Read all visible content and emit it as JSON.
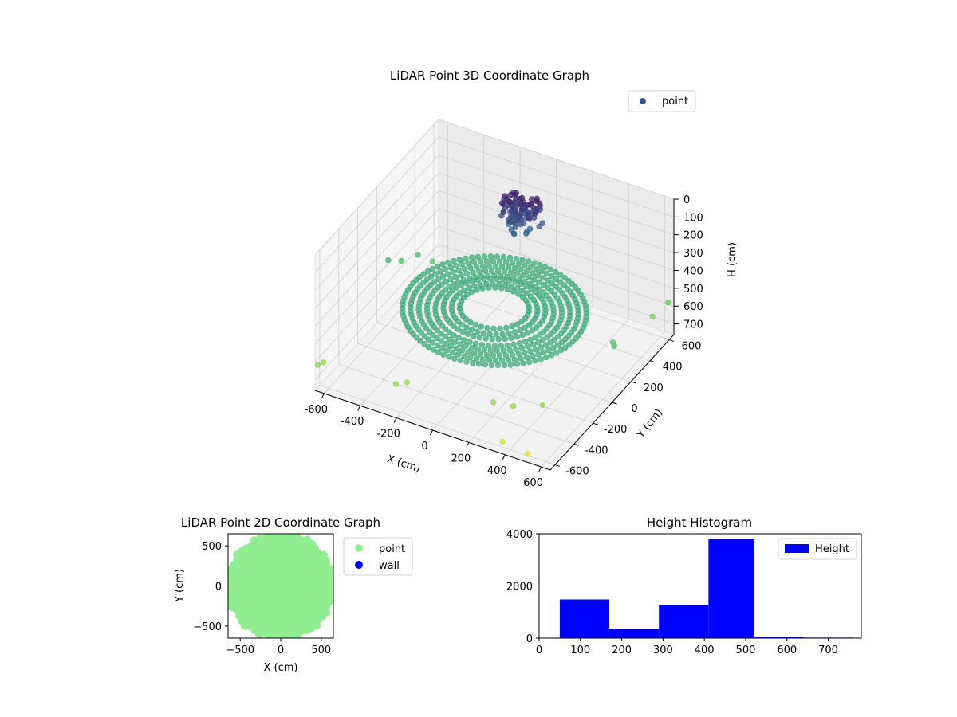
{
  "figure": {
    "background": "#ffffff"
  },
  "chart_data": [
    {
      "type": "scatter",
      "projection": "3d",
      "title": "LiDAR Point 3D Coordinate Graph",
      "xlabel": "X (cm)",
      "ylabel": "Y (cm)",
      "zlabel": "H (cm)",
      "x_ticks": [
        "-600",
        "-400",
        "-200",
        "0",
        "200",
        "400",
        "600"
      ],
      "y_ticks": [
        "-600",
        "-400",
        "-200",
        "0",
        "200",
        "400",
        "600"
      ],
      "z_ticks": [
        "0",
        "100",
        "200",
        "300",
        "400",
        "500",
        "600",
        "700"
      ],
      "xlim": [
        -650,
        650
      ],
      "ylim": [
        -650,
        650
      ],
      "zlim": [
        0,
        760
      ],
      "z_inverted": true,
      "colormap": "viridis",
      "grid": true,
      "legend": {
        "position": "top-right",
        "entries": [
          {
            "label": "point",
            "color": "#3b528b"
          }
        ]
      },
      "series": [
        {
          "name": "point",
          "description_shape": "concentric rings of points at floor level around the sensor, a dense dark cluster near the rear center, scattered outliers at the edges",
          "rings": [
            {
              "radius": 450,
              "h": 470
            },
            {
              "radius": 410,
              "h": 470
            },
            {
              "radius": 370,
              "h": 470
            },
            {
              "radius": 330,
              "h": 470
            },
            {
              "radius": 290,
              "h": 470
            },
            {
              "radius": 250,
              "h": 460
            },
            {
              "radius": 210,
              "h": 460
            },
            {
              "radius": 170,
              "h": 455
            }
          ],
          "cluster": {
            "x": -50,
            "y": 380,
            "h_range": [
              60,
              250
            ]
          },
          "outliers": [
            {
              "x": -640,
              "y": -640,
              "h": 620
            },
            {
              "x": -640,
              "y": -580,
              "h": 640
            },
            {
              "x": -250,
              "y": -560,
              "h": 640
            },
            {
              "x": -210,
              "y": -520,
              "h": 640
            },
            {
              "x": 230,
              "y": -450,
              "h": 640
            },
            {
              "x": 330,
              "y": -430,
              "h": 640
            },
            {
              "x": 450,
              "y": -350,
              "h": 640
            },
            {
              "x": 380,
              "y": -640,
              "h": 700
            },
            {
              "x": 520,
              "y": -640,
              "h": 720
            },
            {
              "x": 640,
              "y": 610,
              "h": 560
            },
            {
              "x": 600,
              "y": 520,
              "h": 600
            },
            {
              "x": -650,
              "y": 120,
              "h": 480
            },
            {
              "x": -620,
              "y": 200,
              "h": 520
            },
            {
              "x": -560,
              "y": 260,
              "h": 500
            },
            {
              "x": -500,
              "y": 300,
              "h": 540
            },
            {
              "x": 620,
              "y": 80,
              "h": 500
            },
            {
              "x": 560,
              "y": 180,
              "h": 560
            }
          ]
        }
      ]
    },
    {
      "type": "scatter",
      "title": "LiDAR Point 2D Coordinate Graph",
      "xlabel": "X (cm)",
      "ylabel": "Y (cm)",
      "x_ticks": [
        "−500",
        "0",
        "500"
      ],
      "y_ticks": [
        "500",
        "0",
        "−500"
      ],
      "xlim": [
        -650,
        650
      ],
      "ylim": [
        -650,
        650
      ],
      "legend": {
        "position": "right",
        "entries": [
          {
            "label": "point",
            "color": "#90ee90"
          },
          {
            "label": "wall",
            "color": "#0000ff"
          }
        ]
      },
      "series": [
        {
          "name": "point",
          "color": "#90ee90",
          "shape": "filled disk",
          "radius": 640
        }
      ]
    },
    {
      "type": "bar",
      "title": "Height Histogram",
      "x_ticks": [
        "0",
        "100",
        "200",
        "300",
        "400",
        "500",
        "600",
        "700"
      ],
      "y_ticks": [
        "0",
        "2000",
        "4000"
      ],
      "xlim": [
        0,
        780
      ],
      "ylim": [
        0,
        4000
      ],
      "legend": {
        "position": "top-right",
        "entries": [
          {
            "label": "Height",
            "color": "#0000ff"
          }
        ]
      },
      "series": [
        {
          "name": "Height",
          "color": "#0000ff",
          "bins": [
            {
              "x0": 50,
              "x1": 170,
              "value": 1480
            },
            {
              "x0": 170,
              "x1": 290,
              "value": 350
            },
            {
              "x0": 290,
              "x1": 410,
              "value": 1260
            },
            {
              "x0": 410,
              "x1": 520,
              "value": 3800
            },
            {
              "x0": 520,
              "x1": 640,
              "value": 30
            },
            {
              "x0": 640,
              "x1": 760,
              "value": 20
            }
          ]
        }
      ]
    }
  ]
}
